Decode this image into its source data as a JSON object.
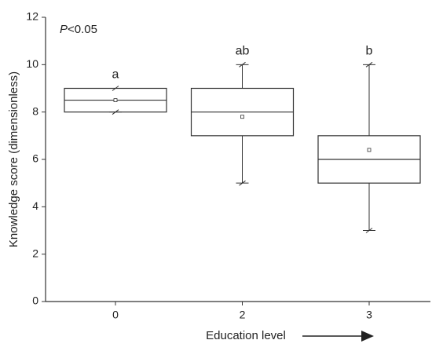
{
  "chart_data": {
    "type": "box",
    "x_label": "Education level",
    "y_label": "Knowledge score (dimensionless)",
    "p_value": {
      "symbol": "P",
      "text": "<0.05"
    },
    "categories": [
      "0",
      "2",
      "3"
    ],
    "min": [
      8,
      5,
      3
    ],
    "q1": [
      8,
      7,
      5
    ],
    "median": [
      8.5,
      8,
      6
    ],
    "q3": [
      9,
      9,
      7
    ],
    "max": [
      9,
      10,
      10
    ],
    "mean": [
      8.5,
      7.8,
      6.4
    ],
    "group_labels": [
      "a",
      "ab",
      "b"
    ],
    "ylim": [
      0,
      12
    ],
    "yticks": [
      0,
      2,
      4,
      6,
      8,
      10,
      12
    ],
    "color": "#333333"
  }
}
